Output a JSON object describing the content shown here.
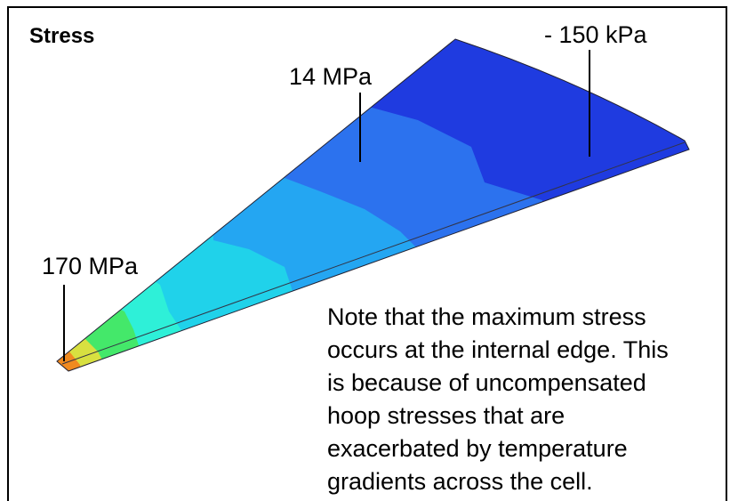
{
  "title": "Stress",
  "annotations": [
    "- 150 kPa",
    "14 MPa",
    "170 MPa"
  ],
  "note": [
    "Note that the maximum stress",
    "occurs at the internal edge. This",
    "is because of uncompensated",
    "hoop stresses that are",
    "exacerbated by temperature",
    "gradients across the cell."
  ]
}
